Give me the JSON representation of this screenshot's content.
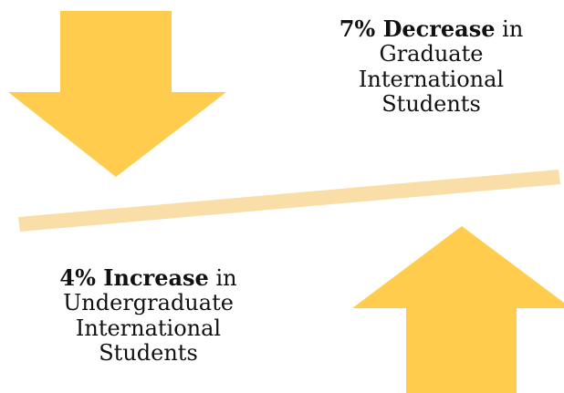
{
  "colors": {
    "arrow": "#ffcc4d",
    "divider": "#f9dea8",
    "text": "#111111",
    "background": "#ffffff"
  },
  "icons": {
    "down_arrow": "down-arrow-icon",
    "up_arrow": "up-arrow-icon"
  },
  "decrease": {
    "headline": "7% Decrease",
    "rest_first_line": " in",
    "line2": "Graduate",
    "line3": "International",
    "line4": "Students"
  },
  "increase": {
    "headline": "4% Increase",
    "rest_first_line": " in",
    "line2": "Undergraduate",
    "line3": "International",
    "line4": "Students"
  }
}
